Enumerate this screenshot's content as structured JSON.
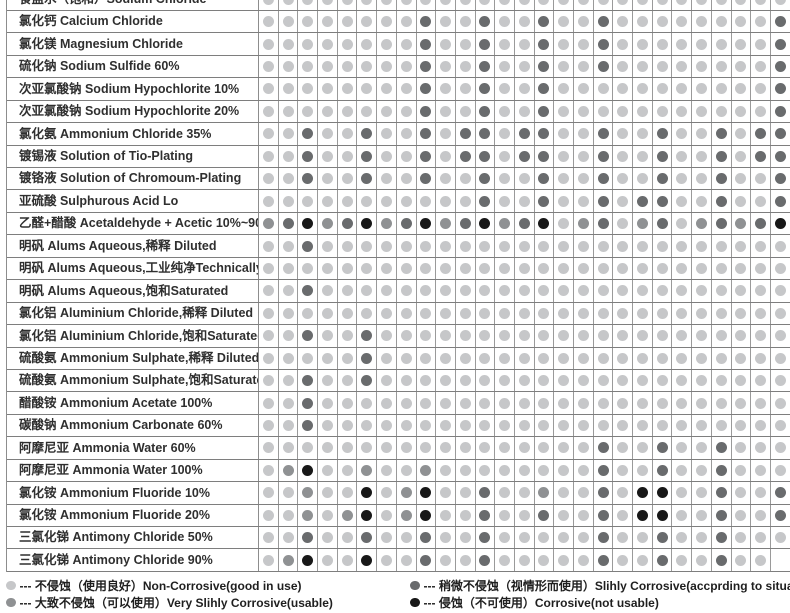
{
  "page": {
    "background": "#ffffff"
  },
  "chart_data": {
    "type": "heatmap",
    "title": "",
    "description": "Chemical corrosion-resistance rating matrix; column headers cropped out of view at top",
    "num_columns": 27,
    "level_colors": {
      "L": "#c6c7c9",
      "M": "#8f9193",
      "D": "#696b6d",
      "K": "#181818"
    },
    "level_meanings": {
      "L": "不侵蚀（使用良好）Non-Corrosive(good in use)",
      "M": "大致不侵蚀（可以使用）Very Slihly Corrosive(usable)",
      "D": "稍微不侵蚀（视情形而使用）Slihly Corrosive(accprding to situations)",
      "K": "侵蚀（不可使用）Corrosive(not usable)"
    },
    "rows": [
      {
        "label": "食盐水（饱和）Sodium Chloride",
        "codes": "LLLLLLLLLLLLLLLLLLLLLLLLLLL"
      },
      {
        "label": "氯化钙 Calcium Chloride",
        "codes": "LLLLLLLLDLLDLLDLLDLLLLLLLLD"
      },
      {
        "label": "氯化镁 Magnesium Chloride",
        "codes": "LLLLLLLLDLLDLLDLLDLLLLLLLLD"
      },
      {
        "label": "硫化钠 Sodium Sulfide 60%",
        "codes": "LLLLLLLLDLLDLLDLLDLLLLLLLLD"
      },
      {
        "label": "次亚氯酸钠 Sodium Hypochlorite 10%",
        "codes": "LLLLLLLLDLLDLLDLLLLLLLLLLLD"
      },
      {
        "label": "次亚氯酸钠 Sodium Hypochlorite 20%",
        "codes": "LLLLLLLLDLLDLLDLLLLLLLLLLLD"
      },
      {
        "label": "氯化氨 Ammonium Chloride 35%",
        "codes": "LLDLLDLLDLDDLDDLLDLLDLLDLDD"
      },
      {
        "label": "镀锡液 Solution of Tio-Plating",
        "codes": "LLDLLDLLDLDDLDDLLDLLDLLDLDD"
      },
      {
        "label": "镀铬液 Solution of Chromoum-Plating",
        "codes": "LLDLLDLLDLLDLLDLLDLLDLLDLLD"
      },
      {
        "label": "亚硫酸  Sulphurous Acid Lo",
        "codes": "LLLLLLLLLLLDLLDLLDLDDLLDLLD"
      },
      {
        "label": "乙醛+醋酸 Acetaldehyde + Acetic 10%~90%",
        "codes": "MDKMDKMDKMDKMDKLMDLMDLMDMDK"
      },
      {
        "label": "明矾 Alums Aqueous,稀释 Diluted",
        "codes": "LLDLLLLLLLLLLLLLLLLLLLLLLLL"
      },
      {
        "label": "明矾 Alums Aqueous,工业纯净Technically Pure",
        "codes": "LLLLLLLLLLLLLLLLLLLLLLLLLLL"
      },
      {
        "label": "明矾 Alums Aqueous,饱和Saturated",
        "codes": "LLDLLLLLLLLLLLLLLLLLLLLLLLL"
      },
      {
        "label": "氯化铝 Aluminium Chloride,稀释 Diluted",
        "codes": "LLLLLLLLLLLLLLLLLLLLLLLLLLL"
      },
      {
        "label": "氯化铝 Aluminium Chloride,饱和Saturated",
        "codes": "LLDLLDLLLLLLLLLLLLLLLLLLLLL"
      },
      {
        "label": "硫酸氨 Ammonium Sulphate,稀释 Diluted",
        "codes": "LLLLLDLLLLLLLLLLLLLLLLLLLLL"
      },
      {
        "label": "硫酸氨 Ammonium Sulphate,饱和Saturated",
        "codes": "LLDLLDLLLLLLLLLLLLLLLLLLLLL"
      },
      {
        "label": "醋酸铵 Ammonium Acetate 100%",
        "codes": "LLDLLLLLLLLLLLLLLLLLLLLLLLL"
      },
      {
        "label": "碳酸钠 Ammonium Carbonate 60%",
        "codes": "LLDLLLLLLLLLLLLLLLLLLLLLLLL"
      },
      {
        "label": "阿摩尼亚 Ammonia Water 60%",
        "codes": "LLLLLLLLLLLLLLLLLDLLDLLDLLL"
      },
      {
        "label": "阿摩尼亚 Ammonia Water 100%",
        "codes": "LMKLLMLLMLLLLLLLLDLLDLLDLLL"
      },
      {
        "label": "氯化铵 Ammonium Fluoride 10%",
        "codes": "LLMLLKLMKLLDLLMLLDLKKLLDLLD"
      },
      {
        "label": "氯化铵 Ammonium Fluoride 20%",
        "codes": "LLMLMKLMKLLDLLDLLDLKKLLDLLD"
      },
      {
        "label": "三氯化锑 Antimony Chloride 50%",
        "codes": "LLDLLDLLDLLDLLLLLDLLDLLDLLL"
      },
      {
        "label": "三氯化锑 Antimony Chloride 90%",
        "codes": "LMKLLKLLDLLDLLLLLDLLDLLDLL-"
      }
    ]
  },
  "legend": {
    "items": [
      {
        "code": "L",
        "label": "--- 不侵蚀（使用良好）Non-Corrosive(good in use)"
      },
      {
        "code": "M",
        "label": "--- 大致不侵蚀（可以使用）Very Slihly Corrosive(usable)"
      },
      {
        "code": "D",
        "label": "--- 稍微不侵蚀（视情形而使用）Slihly Corrosive(accprding to situations)"
      },
      {
        "code": "K",
        "label": "--- 侵蚀（不可使用）Corrosive(not usable)"
      }
    ]
  }
}
